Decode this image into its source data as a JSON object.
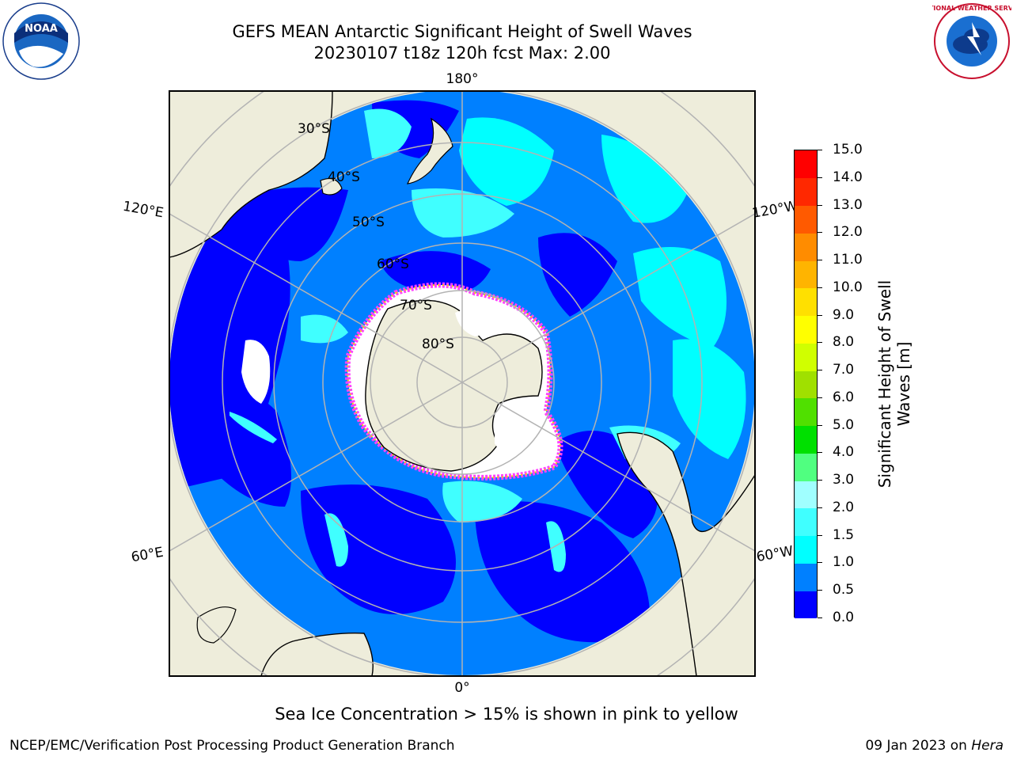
{
  "title": {
    "line1": "GEFS MEAN Antarctic Significant Height of Swell Waves",
    "line2": "20230107 t18z 120h fcst   Max: 2.00"
  },
  "map": {
    "projection": "south-polar-stereographic",
    "parallel_labels": [
      "30°S",
      "40°S",
      "50°S",
      "60°S",
      "70°S",
      "80°S"
    ],
    "meridian_labels": {
      "top": "180°",
      "upper_left": "120°E",
      "upper_right": "120°W",
      "lower_left": "60°E",
      "lower_right": "60°W",
      "bottom": "0°"
    },
    "colors": {
      "land": "#eeeddb",
      "ocean_low": "#0000ff",
      "ocean_mid": "#0080ff",
      "ocean_high": "#00ffff",
      "ice_edge": "#ff40ff",
      "grid": "#b3b3b3"
    }
  },
  "colorbar": {
    "title": "Significant Height of Swell Waves [m]",
    "ticks": [
      "0.0",
      "0.5",
      "1.0",
      "1.5",
      "2.0",
      "3.0",
      "4.0",
      "5.0",
      "6.0",
      "7.0",
      "8.0",
      "9.0",
      "10.0",
      "11.0",
      "12.0",
      "13.0",
      "14.0",
      "15.0"
    ],
    "colors": [
      "#0000ff",
      "#0080ff",
      "#00ffff",
      "#40ffff",
      "#a0ffff",
      "#50ff80",
      "#00e000",
      "#50e000",
      "#a0e000",
      "#d0ff00",
      "#ffff00",
      "#ffe000",
      "#ffb400",
      "#ff8c00",
      "#ff5a00",
      "#ff2800",
      "#ff0000"
    ]
  },
  "footnote": "Sea Ice Concentration > 15% is shown in pink to yellow",
  "footer": {
    "left": "NCEP/EMC/Verification Post Processing Product Generation Branch",
    "right_date": "09 Jan 2023 on ",
    "right_host": "Hera"
  },
  "logos": {
    "noaa": "NOAA",
    "nws": "NATIONAL WEATHER SERVICE"
  }
}
